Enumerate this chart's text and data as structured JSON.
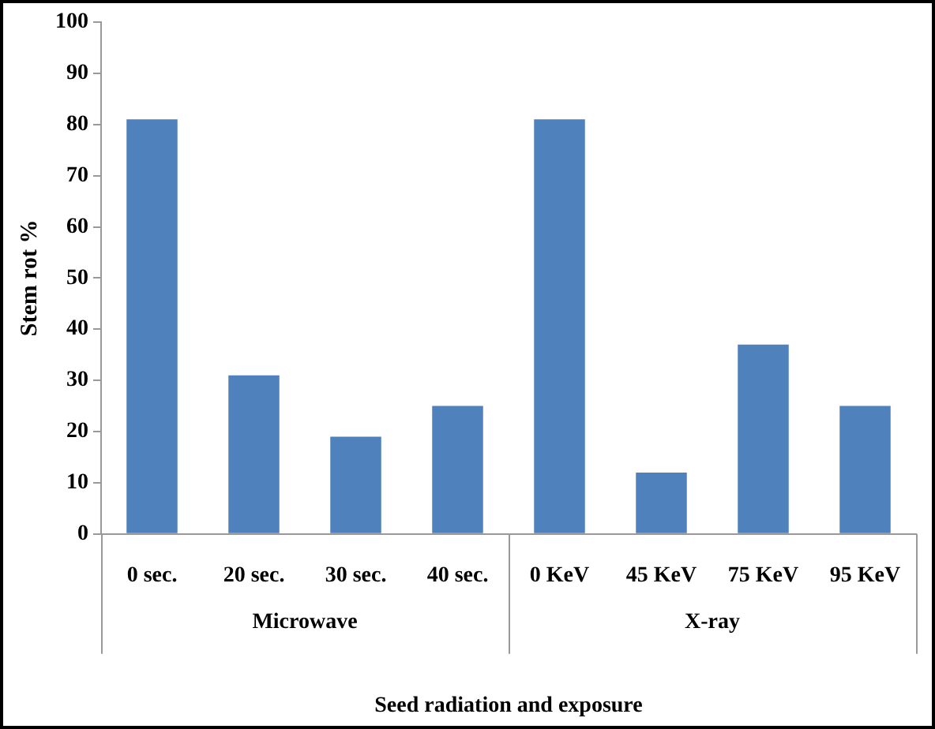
{
  "chart_data": {
    "type": "bar",
    "categories": [
      "0 sec.",
      "20 sec.",
      "30 sec.",
      "40 sec.",
      "0 KeV",
      "45 KeV",
      "75 KeV",
      "95 KeV"
    ],
    "values": [
      81,
      31,
      19,
      25,
      81,
      12,
      37,
      25
    ],
    "color": "#4f81bd",
    "ylim": [
      0,
      100
    ],
    "yticks": [
      0,
      10,
      20,
      30,
      40,
      50,
      60,
      70,
      80,
      90,
      100
    ],
    "grid": false,
    "legend": false,
    "ylabel": "Stem rot %",
    "xlabel": "Seed radiation and exposure",
    "annotations": [
      "Microwave",
      "X-ray"
    ]
  }
}
